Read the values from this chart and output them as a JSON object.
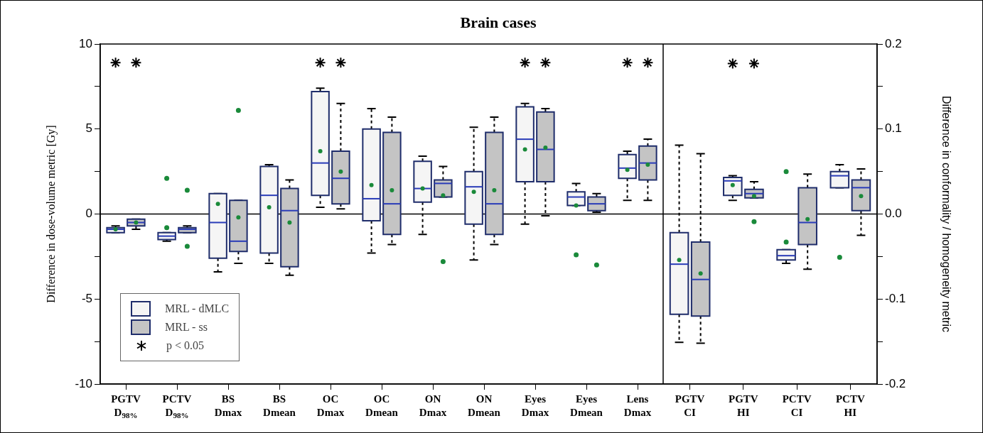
{
  "chart_data": [
    {
      "type": "box",
      "title": "Brain cases",
      "ylabel": "Difference in dose-volume metric [Gy]",
      "categories": [
        "PGTV\nD$_{98%}$",
        "PCTV\nD$_{98%}$",
        "BS\nDmax",
        "BS\nDmean",
        "OC\nDmax",
        "OC\nDmean",
        "ON\nDmax",
        "ON\nDmean",
        "Eyes\nDmax",
        "Eyes\nDmean",
        "Lens\nDmax"
      ],
      "ylim": [
        -10,
        10
      ],
      "yticks": [
        -10,
        {
          "value": -7.5,
          "label": null
        },
        -5,
        {
          "value": -2.5,
          "label": null
        },
        0,
        {
          "value": 2.5,
          "label": null
        },
        5,
        {
          "value": 7.5,
          "label": null
        },
        10
      ],
      "grid": false,
      "legend": "bottom left",
      "ref_lines": [
        {
          "axis": "y",
          "value": 0,
          "color": "#000000"
        }
      ],
      "series": [
        {
          "name": "MRL - dMLC",
          "color": "#f5f5f5",
          "boxes": [
            {
              "low": -1.1,
              "q1": -1.1,
              "median": -0.9,
              "q3": -0.8,
              "high": -0.7,
              "mean": -0.9
            },
            {
              "low": -1.6,
              "q1": -1.5,
              "median": -1.3,
              "q3": -1.1,
              "high": -1.1,
              "outliers": [
                2.1,
                -0.8
              ]
            },
            {
              "low": -3.4,
              "q1": -2.6,
              "median": -0.5,
              "q3": 1.2,
              "high": 1.2,
              "mean": 0.6
            },
            {
              "low": -2.9,
              "q1": -2.3,
              "median": 1.1,
              "q3": 2.8,
              "high": 2.9,
              "mean": 0.4
            },
            {
              "low": 0.4,
              "q1": 1.1,
              "median": 3.0,
              "q3": 7.2,
              "high": 7.4,
              "mean": 3.7
            },
            {
              "low": -2.3,
              "q1": -0.4,
              "median": 0.9,
              "q3": 5.0,
              "high": 6.2,
              "mean": 1.7
            },
            {
              "low": -1.2,
              "q1": 0.7,
              "median": 1.5,
              "q3": 3.1,
              "high": 3.4,
              "mean": 1.5
            },
            {
              "low": -2.7,
              "q1": -0.6,
              "median": 1.6,
              "q3": 2.5,
              "high": 5.1,
              "mean": 1.3
            },
            {
              "low": -0.6,
              "q1": 1.9,
              "median": 4.4,
              "q3": 6.3,
              "high": 6.5,
              "mean": 3.8
            },
            {
              "low": 0.5,
              "q1": 0.5,
              "median": 1.0,
              "q3": 1.3,
              "high": 1.8,
              "mean": 0.5,
              "outliers": [
                -2.4
              ]
            },
            {
              "low": 0.8,
              "q1": 2.1,
              "median": 2.7,
              "q3": 3.5,
              "high": 3.7,
              "mean": 2.6
            }
          ]
        },
        {
          "name": "MRL - ss",
          "color": "#c4c4c4",
          "boxes": [
            {
              "low": -0.9,
              "q1": -0.7,
              "median": -0.5,
              "q3": -0.3,
              "high": -0.3,
              "mean": -0.5
            },
            {
              "low": -1.1,
              "q1": -1.1,
              "median": -0.9,
              "q3": -0.8,
              "high": -0.7,
              "outliers": [
                1.4,
                -1.9
              ]
            },
            {
              "low": -2.9,
              "q1": -2.2,
              "median": -1.6,
              "q3": 0.8,
              "high": 0.8,
              "mean": -0.2,
              "outliers": [
                6.1
              ]
            },
            {
              "low": -3.6,
              "q1": -3.1,
              "median": 0.2,
              "q3": 1.5,
              "high": 2.0,
              "mean": -0.5
            },
            {
              "low": 0.3,
              "q1": 0.6,
              "median": 2.1,
              "q3": 3.7,
              "high": 6.5,
              "mean": 2.5
            },
            {
              "low": -1.8,
              "q1": -1.2,
              "median": 0.6,
              "q3": 4.8,
              "high": 5.7,
              "mean": 1.4
            },
            {
              "low": 1.0,
              "q1": 1.0,
              "median": 1.8,
              "q3": 2.0,
              "high": 2.8,
              "mean": 1.1,
              "outliers": [
                -2.8
              ]
            },
            {
              "low": -1.8,
              "q1": -1.2,
              "median": 0.6,
              "q3": 4.8,
              "high": 5.7,
              "mean": 1.4
            },
            {
              "low": -0.1,
              "q1": 1.9,
              "median": 3.8,
              "q3": 6.0,
              "high": 6.2,
              "mean": 3.9
            },
            {
              "low": 0.1,
              "q1": 0.2,
              "median": 0.6,
              "q3": 1.0,
              "high": 1.2,
              "outliers": [
                -3.0
              ]
            },
            {
              "low": 0.8,
              "q1": 2.0,
              "median": 3.0,
              "q3": 4.0,
              "high": 4.4,
              "mean": 2.9
            }
          ]
        },
        {
          "name": "p < 0.05",
          "type": "scatter",
          "color": "#000000",
          "marker": "cross",
          "x": [
            "PGTV\nD$_{98%}$",
            "PGTV\nD$_{98%}$",
            "OC\nDmax",
            "OC\nDmax",
            "Eyes\nDmax",
            "Eyes\nDmax",
            "Lens\nDmax",
            "Lens\nDmax"
          ],
          "values": [
            8.9,
            8.9,
            8.9,
            8.9,
            8.9,
            8.9,
            8.9,
            8.9
          ]
        }
      ]
    },
    {
      "type": "box",
      "y2label": "Difference in conformality / homogeneity metric",
      "categories": [
        "PGTV\nCI",
        "PGTV\nHI",
        "PCTV\nCI",
        "PCTV\nHI"
      ],
      "y2lim": [
        -0.2,
        0.2
      ],
      "y2ticks": [
        -0.2,
        {
          "value": -0.15,
          "label": null
        },
        -0.1,
        {
          "value": -0.05,
          "label": null
        },
        {
          "value": 0,
          "label": "0.0"
        },
        {
          "value": 0.05,
          "label": null
        },
        0.1,
        {
          "value": 0.15,
          "label": null
        },
        0.2
      ],
      "grid": false,
      "ref_lines": [
        {
          "axis": "y2",
          "value": 0,
          "color": "#000000"
        }
      ],
      "series": [
        {
          "color": "#f5f5f5",
          "axis": "y2",
          "boxes": [
            {
              "low": -0.151,
              "q1": -0.118,
              "median": -0.059,
              "q3": -0.022,
              "high": 0.081,
              "mean": -0.054
            },
            {
              "low": 0.016,
              "q1": 0.022,
              "median": 0.039,
              "q3": 0.043,
              "high": 0.045,
              "mean": 0.034
            },
            {
              "low": -0.058,
              "q1": -0.054,
              "median": -0.049,
              "q3": -0.042,
              "high": -0.042,
              "outliers": [
                0.05,
                -0.033
              ]
            },
            {
              "low": 0.031,
              "q1": 0.031,
              "median": 0.045,
              "q3": 0.05,
              "high": 0.058,
              "outliers": [
                -0.051
              ]
            }
          ]
        },
        {
          "color": "#c4c4c4",
          "axis": "y2",
          "boxes": [
            {
              "low": -0.152,
              "q1": -0.12,
              "median": -0.077,
              "q3": -0.033,
              "high": 0.071,
              "mean": -0.07
            },
            {
              "low": 0.019,
              "q1": 0.019,
              "median": 0.024,
              "q3": 0.029,
              "high": 0.038,
              "mean": 0.021,
              "outliers": [
                -0.009
              ]
            },
            {
              "low": -0.065,
              "q1": -0.036,
              "median": -0.01,
              "q3": 0.031,
              "high": 0.047,
              "mean": -0.006
            },
            {
              "low": -0.025,
              "q1": 0.004,
              "median": 0.031,
              "q3": 0.04,
              "high": 0.053,
              "mean": 0.021
            }
          ]
        },
        {
          "type": "scatter",
          "color": "#000000",
          "marker": "cross",
          "axis": "y2",
          "x": [
            "PGTV\nHI",
            "PGTV\nHI"
          ],
          "values": [
            0.177,
            0.177
          ]
        }
      ]
    }
  ]
}
